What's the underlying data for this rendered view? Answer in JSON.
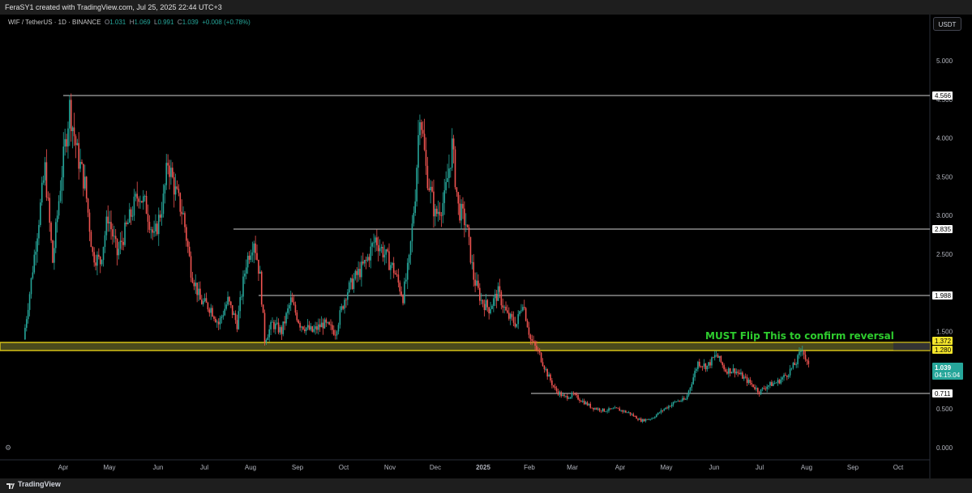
{
  "header": {
    "caption": "FeraSY1 created with TradingView.com, Jul 25, 2025 22:44 UTC+3"
  },
  "legend": {
    "symbol": "WIF / TetherUS · 1D · BINANCE",
    "o_label": "O",
    "o_value": "1.031",
    "h_label": "H",
    "h_value": "1.069",
    "l_label": "L",
    "l_value": "0.991",
    "c_label": "C",
    "c_value": "1.039",
    "change": "+0.008 (+0.78%)"
  },
  "toolbar": {
    "currency_button": "USDT"
  },
  "footer": {
    "brand": "TradingView"
  },
  "colors": {
    "up": "#26a69a",
    "down": "#ef5350",
    "zone_border": "#d4c016",
    "zone_fill": "#4a4a1c",
    "annotation": "#2ecc2e",
    "price_tag": "#26a69a",
    "level_tag": "#ffffff",
    "zone_tag": "#f5e62b"
  },
  "chart_data": {
    "type": "candlestick",
    "title": "",
    "symbol": "WIFUSDT",
    "interval": "1D",
    "y_ticks": [
      "5.000",
      "4.500",
      "4.000",
      "3.500",
      "3.000",
      "2.500",
      "1.500",
      "0.500",
      "0.000"
    ],
    "ylim": [
      -0.1,
      5.1
    ],
    "x_ticks": [
      "Apr",
      "May",
      "Jun",
      "Jul",
      "Aug",
      "Sep",
      "Oct",
      "Nov",
      "Dec",
      "2025",
      "Feb",
      "Mar",
      "Apr",
      "May",
      "Jun",
      "Jul",
      "Aug",
      "Sep",
      "Oct"
    ],
    "horizontal_levels": [
      {
        "value": 4.566,
        "label": "4.566"
      },
      {
        "value": 2.835,
        "label": "2.835"
      },
      {
        "value": 1.988,
        "label": "1.988"
      },
      {
        "value": 0.711,
        "label": "0.711"
      }
    ],
    "zone": {
      "top": 1.372,
      "bottom": 1.28,
      "top_label": "1.372",
      "bottom_label": "1.280"
    },
    "annotation": "MUST Flip This to confirm reversal",
    "last_price": {
      "value": 1.039,
      "label": "1.039",
      "countdown": "04:15:04"
    },
    "price_path": [
      {
        "date": "2024-03-01",
        "close": 1.4
      },
      {
        "date": "2024-03-05",
        "close": 2.0
      },
      {
        "date": "2024-03-10",
        "close": 2.8
      },
      {
        "date": "2024-03-15",
        "close": 3.6
      },
      {
        "date": "2024-03-20",
        "close": 2.4
      },
      {
        "date": "2024-03-25",
        "close": 3.4
      },
      {
        "date": "2024-03-31",
        "close": 4.4
      },
      {
        "date": "2024-04-05",
        "close": 3.8
      },
      {
        "date": "2024-04-10",
        "close": 3.4
      },
      {
        "date": "2024-04-15",
        "close": 2.5
      },
      {
        "date": "2024-04-20",
        "close": 2.4
      },
      {
        "date": "2024-04-25",
        "close": 3.0
      },
      {
        "date": "2024-05-01",
        "close": 2.5
      },
      {
        "date": "2024-05-08",
        "close": 2.9
      },
      {
        "date": "2024-05-15",
        "close": 3.3
      },
      {
        "date": "2024-05-20",
        "close": 3.1
      },
      {
        "date": "2024-05-25",
        "close": 2.7
      },
      {
        "date": "2024-05-31",
        "close": 3.2
      },
      {
        "date": "2024-06-03",
        "close": 3.7
      },
      {
        "date": "2024-06-08",
        "close": 3.3
      },
      {
        "date": "2024-06-13",
        "close": 3.0
      },
      {
        "date": "2024-06-18",
        "close": 2.3
      },
      {
        "date": "2024-06-24",
        "close": 1.9
      },
      {
        "date": "2024-07-01",
        "close": 1.8
      },
      {
        "date": "2024-07-06",
        "close": 1.6
      },
      {
        "date": "2024-07-12",
        "close": 1.9
      },
      {
        "date": "2024-07-18",
        "close": 1.6
      },
      {
        "date": "2024-07-24",
        "close": 2.4
      },
      {
        "date": "2024-07-29",
        "close": 2.7
      },
      {
        "date": "2024-08-02",
        "close": 2.2
      },
      {
        "date": "2024-08-05",
        "close": 1.4
      },
      {
        "date": "2024-08-10",
        "close": 1.6
      },
      {
        "date": "2024-08-16",
        "close": 1.5
      },
      {
        "date": "2024-08-22",
        "close": 1.9
      },
      {
        "date": "2024-08-28",
        "close": 1.6
      },
      {
        "date": "2024-09-05",
        "close": 1.5
      },
      {
        "date": "2024-09-12",
        "close": 1.6
      },
      {
        "date": "2024-09-20",
        "close": 1.5
      },
      {
        "date": "2024-09-27",
        "close": 2.0
      },
      {
        "date": "2024-10-03",
        "close": 2.2
      },
      {
        "date": "2024-10-10",
        "close": 2.4
      },
      {
        "date": "2024-10-16",
        "close": 2.7
      },
      {
        "date": "2024-10-22",
        "close": 2.5
      },
      {
        "date": "2024-10-28",
        "close": 2.3
      },
      {
        "date": "2024-11-03",
        "close": 1.95
      },
      {
        "date": "2024-11-07",
        "close": 2.4
      },
      {
        "date": "2024-11-11",
        "close": 3.3
      },
      {
        "date": "2024-11-14",
        "close": 4.4
      },
      {
        "date": "2024-11-18",
        "close": 3.6
      },
      {
        "date": "2024-11-24",
        "close": 3.0
      },
      {
        "date": "2024-11-30",
        "close": 3.2
      },
      {
        "date": "2024-12-05",
        "close": 3.9
      },
      {
        "date": "2024-12-09",
        "close": 3.1
      },
      {
        "date": "2024-12-14",
        "close": 2.9
      },
      {
        "date": "2024-12-19",
        "close": 2.2
      },
      {
        "date": "2024-12-24",
        "close": 1.9
      },
      {
        "date": "2024-12-29",
        "close": 1.8
      },
      {
        "date": "2025-01-04",
        "close": 2.0
      },
      {
        "date": "2025-01-10",
        "close": 1.7
      },
      {
        "date": "2025-01-16",
        "close": 1.6
      },
      {
        "date": "2025-01-20",
        "close": 1.9
      },
      {
        "date": "2025-01-25",
        "close": 1.4
      },
      {
        "date": "2025-01-31",
        "close": 1.2
      },
      {
        "date": "2025-02-05",
        "close": 0.95
      },
      {
        "date": "2025-02-10",
        "close": 0.75
      },
      {
        "date": "2025-02-16",
        "close": 0.65
      },
      {
        "date": "2025-02-22",
        "close": 0.68
      },
      {
        "date": "2025-02-28",
        "close": 0.6
      },
      {
        "date": "2025-03-06",
        "close": 0.52
      },
      {
        "date": "2025-03-14",
        "close": 0.48
      },
      {
        "date": "2025-03-22",
        "close": 0.5
      },
      {
        "date": "2025-03-30",
        "close": 0.45
      },
      {
        "date": "2025-04-07",
        "close": 0.35
      },
      {
        "date": "2025-04-14",
        "close": 0.38
      },
      {
        "date": "2025-04-22",
        "close": 0.5
      },
      {
        "date": "2025-04-30",
        "close": 0.6
      },
      {
        "date": "2025-05-06",
        "close": 0.62
      },
      {
        "date": "2025-05-10",
        "close": 0.85
      },
      {
        "date": "2025-05-14",
        "close": 1.1
      },
      {
        "date": "2025-05-20",
        "close": 1.05
      },
      {
        "date": "2025-05-26",
        "close": 1.2
      },
      {
        "date": "2025-06-01",
        "close": 1.0
      },
      {
        "date": "2025-06-07",
        "close": 1.0
      },
      {
        "date": "2025-06-13",
        "close": 0.9
      },
      {
        "date": "2025-06-19",
        "close": 0.8
      },
      {
        "date": "2025-06-23",
        "close": 0.72
      },
      {
        "date": "2025-06-28",
        "close": 0.8
      },
      {
        "date": "2025-07-05",
        "close": 0.85
      },
      {
        "date": "2025-07-11",
        "close": 0.95
      },
      {
        "date": "2025-07-17",
        "close": 1.1
      },
      {
        "date": "2025-07-21",
        "close": 1.3
      },
      {
        "date": "2025-07-23",
        "close": 1.15
      },
      {
        "date": "2025-07-25",
        "close": 1.039
      }
    ]
  }
}
